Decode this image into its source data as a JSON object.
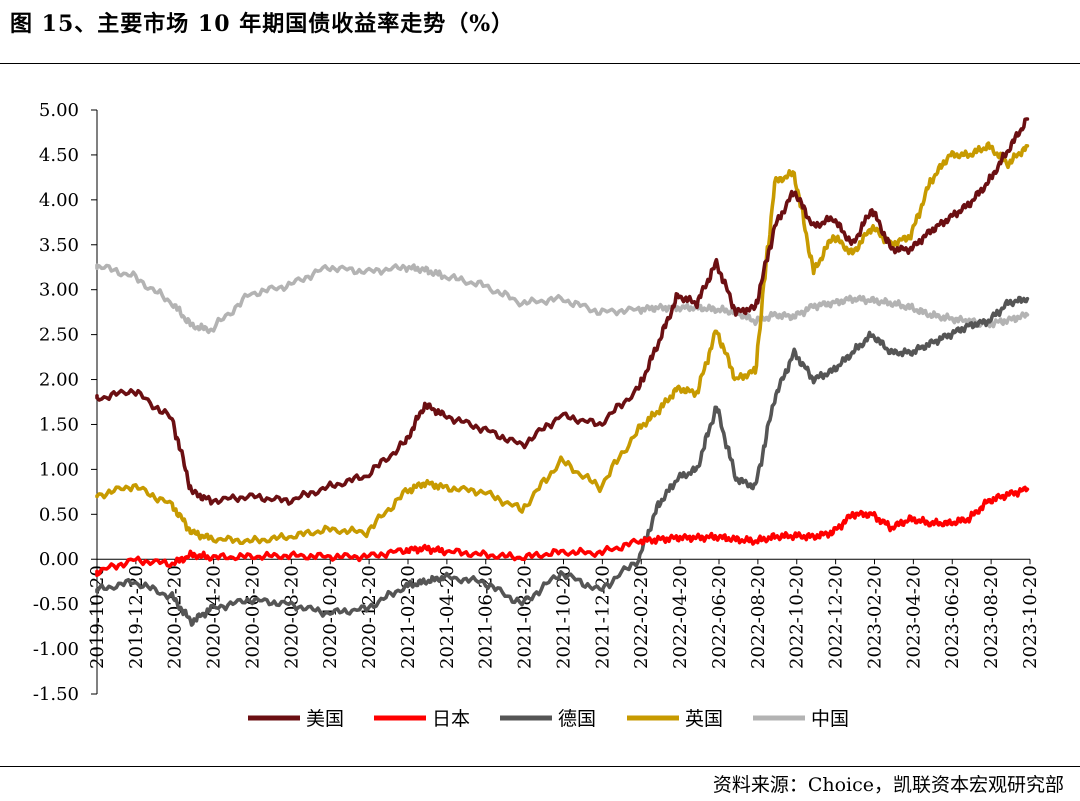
{
  "title": "图 15、主要市场 10 年期国债收益率走势（%）",
  "source": "资料来源：Choice，凯联资本宏观研究部",
  "chart_data": {
    "type": "line",
    "title": "图 15、主要市场 10 年期国债收益率走势（%）",
    "xlabel": "",
    "ylabel": "",
    "ylim": [
      -1.5,
      5.0
    ],
    "yticks": [
      "5.00",
      "4.50",
      "4.00",
      "3.50",
      "3.00",
      "2.50",
      "2.00",
      "1.50",
      "1.00",
      "0.50",
      "0.00",
      "-0.50",
      "-1.00",
      "-1.50"
    ],
    "xticks": [
      "2019-10-20",
      "2019-12-20",
      "2020-02-20",
      "2020-04-20",
      "2020-06-20",
      "2020-08-20",
      "2020-10-20",
      "2020-12-20",
      "2021-02-20",
      "2021-04-20",
      "2021-06-20",
      "2021-08-20",
      "2021-10-20",
      "2021-12-20",
      "2022-02-20",
      "2022-04-20",
      "2022-06-20",
      "2022-08-20",
      "2022-10-20",
      "2022-12-20",
      "2023-02-20",
      "2023-04-20",
      "2023-06-20",
      "2023-08-20",
      "2023-10-20"
    ],
    "grid": false,
    "legend_position": "bottom",
    "x": [
      "2019-10",
      "2019-12",
      "2020-02",
      "2020-03",
      "2020-04",
      "2020-06",
      "2020-08",
      "2020-10",
      "2020-12",
      "2021-02",
      "2021-03",
      "2021-04",
      "2021-06",
      "2021-08",
      "2021-10",
      "2021-12",
      "2022-02",
      "2022-03",
      "2022-04",
      "2022-05",
      "2022-06",
      "2022-07",
      "2022-08",
      "2022-09",
      "2022-10",
      "2022-11",
      "2022-12",
      "2023-01",
      "2023-02",
      "2023-03",
      "2023-04",
      "2023-05",
      "2023-06",
      "2023-07",
      "2023-08",
      "2023-09",
      "2023-10"
    ],
    "series": [
      {
        "name": "美国",
        "color": "#6b0f12",
        "values": [
          1.78,
          1.88,
          1.56,
          0.75,
          0.65,
          0.7,
          0.65,
          0.8,
          0.93,
          1.3,
          1.72,
          1.6,
          1.45,
          1.27,
          1.6,
          1.5,
          1.9,
          2.4,
          2.93,
          2.85,
          3.3,
          2.75,
          2.8,
          3.7,
          4.1,
          3.7,
          3.8,
          3.5,
          3.9,
          3.45,
          3.45,
          3.65,
          3.8,
          3.95,
          4.2,
          4.55,
          4.9
        ]
      },
      {
        "name": "日本",
        "color": "#ff0000",
        "values": [
          -0.15,
          -0.01,
          -0.05,
          0.05,
          0.02,
          0.03,
          0.04,
          0.03,
          0.03,
          0.1,
          0.12,
          0.09,
          0.05,
          0.02,
          0.08,
          0.07,
          0.2,
          0.22,
          0.24,
          0.24,
          0.25,
          0.22,
          0.2,
          0.25,
          0.26,
          0.25,
          0.3,
          0.5,
          0.5,
          0.35,
          0.45,
          0.4,
          0.4,
          0.45,
          0.65,
          0.72,
          0.78
        ]
      },
      {
        "name": "德国",
        "color": "#555555",
        "values": [
          -0.35,
          -0.25,
          -0.42,
          -0.7,
          -0.55,
          -0.45,
          -0.5,
          -0.6,
          -0.55,
          -0.3,
          -0.25,
          -0.2,
          -0.25,
          -0.5,
          -0.15,
          -0.35,
          0.0,
          0.6,
          0.9,
          1.0,
          1.7,
          0.9,
          0.8,
          1.8,
          2.3,
          2.0,
          2.1,
          2.3,
          2.5,
          2.3,
          2.3,
          2.4,
          2.5,
          2.6,
          2.65,
          2.85,
          2.9
        ]
      },
      {
        "name": "英国",
        "color": "#c79a00",
        "values": [
          0.7,
          0.82,
          0.6,
          0.3,
          0.23,
          0.2,
          0.25,
          0.33,
          0.3,
          0.75,
          0.85,
          0.8,
          0.75,
          0.55,
          1.1,
          0.8,
          1.45,
          1.65,
          1.9,
          1.85,
          2.55,
          2.0,
          2.1,
          4.2,
          4.3,
          3.2,
          3.6,
          3.4,
          3.7,
          3.5,
          3.6,
          4.2,
          4.5,
          4.5,
          4.6,
          4.4,
          4.6
        ]
      },
      {
        "name": "中国",
        "color": "#b3b3b3",
        "values": [
          3.28,
          3.15,
          2.85,
          2.6,
          2.55,
          2.95,
          3.05,
          3.25,
          3.2,
          3.25,
          3.22,
          3.15,
          3.05,
          2.85,
          2.9,
          2.75,
          2.78,
          2.8,
          2.8,
          2.8,
          2.78,
          2.75,
          2.65,
          2.72,
          2.7,
          2.82,
          2.85,
          2.9,
          2.88,
          2.85,
          2.8,
          2.72,
          2.68,
          2.65,
          2.62,
          2.66,
          2.72
        ]
      }
    ]
  }
}
